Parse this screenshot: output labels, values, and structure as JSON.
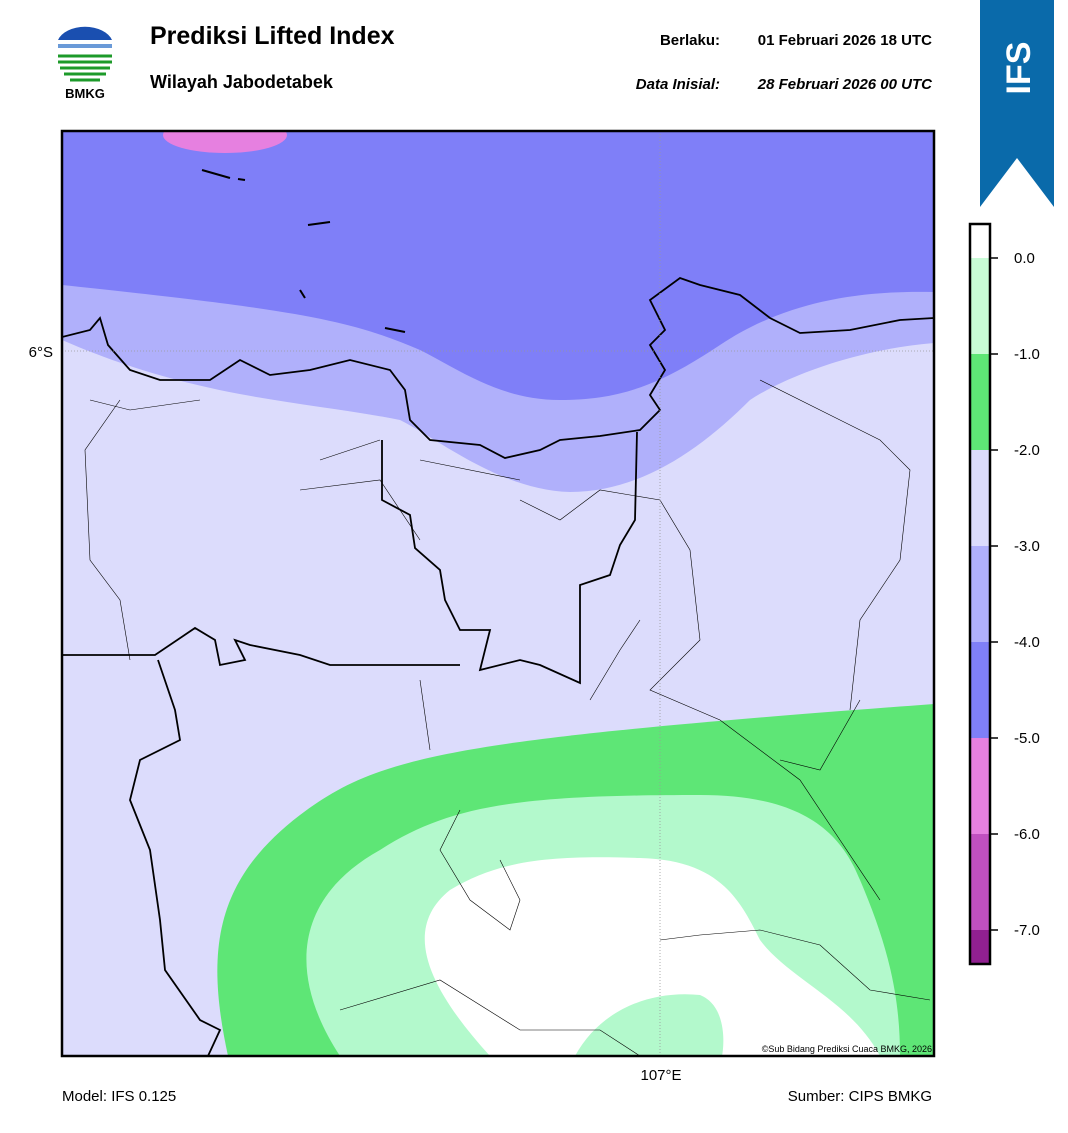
{
  "header": {
    "logo_text": "BMKG",
    "title": "Prediksi Lifted Index",
    "subtitle": "Wilayah Jabodetabek",
    "valid_label": "Berlaku:",
    "valid_time": "01 Februari 2026 18 UTC",
    "init_label": "Data Inisial:",
    "init_time": "28 Februari 2026 00 UTC",
    "badge": "IFS"
  },
  "map": {
    "lat_label": "6°S",
    "lon_label": "107°E",
    "copyright": "©Sub Bidang Prediksi Cuaca BMKG, 2026"
  },
  "colorbar": {
    "labels": [
      "0.0",
      "-1.0",
      "-2.0",
      "-3.0",
      "-4.0",
      "-5.0",
      "-6.0",
      "-7.0"
    ]
  },
  "footer": {
    "model": "Model: IFS 0.125",
    "source": "Sumber: CIPS BMKG"
  }
}
